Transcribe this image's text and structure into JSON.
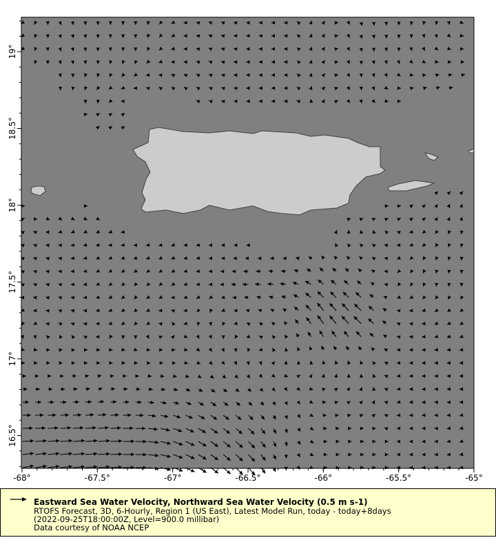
{
  "legend": {
    "title": "Eastward Sea Water Velocity, Northward Sea Water Velocity (0.5 m s-1)",
    "line1": "RTOFS Forecast, 3D, 6-Hourly, Region 1 (US East), Latest Model Run, today - today+8days",
    "line2": "(2022-09-25T18:00:00Z, Level=900.0 millibar)",
    "line3": "Data courtesy of NOAA NCEP",
    "reference_speed": 0.5
  },
  "colors": {
    "ocean": "#808080",
    "land": "#cccccc",
    "coast": "#404040",
    "vectors": "#000000",
    "legend_bg": "#ffffcc"
  },
  "chart_data": {
    "type": "vector",
    "x_ticks": [
      "-68°",
      "-67.5°",
      "-67°",
      "-66.5°",
      "-66°",
      "-65.5°",
      "-65°"
    ],
    "y_ticks": [
      "16.5°",
      "17°",
      "17.5°",
      "18°",
      "18.5°",
      "19°"
    ],
    "xlim": [
      -68,
      -65
    ],
    "ylim": [
      16.29,
      19.22
    ],
    "units": "m s-1",
    "coarse_lon": [
      -68,
      -67.75,
      -67.5,
      -67.25,
      -67,
      -66.75,
      -66.5,
      -66.25,
      -66,
      -65.75,
      -65.5,
      -65.25,
      -65
    ],
    "coarse_lat": [
      19.25,
      19.0,
      18.75,
      18.5,
      18.25,
      18.0,
      17.75,
      17.5,
      17.25,
      17.0,
      16.75,
      16.5,
      16.25
    ],
    "u_v": [
      [
        [
          -0.08,
          -0.04
        ],
        [
          0.04,
          -0.1
        ],
        [
          0,
          -0.1
        ],
        [
          0,
          -0.08
        ],
        [
          -0.06,
          -0.04
        ],
        [
          -0.1,
          0.04
        ],
        [
          -0.1,
          0
        ],
        [
          -0.08,
          0
        ],
        [
          0.06,
          0.08
        ],
        [
          0.04,
          -0.14
        ],
        [
          0,
          -0.12
        ],
        [
          -0.04,
          -0.1
        ],
        [
          0.06,
          0.02
        ]
      ],
      [
        [
          -0.06,
          -0.04
        ],
        [
          0.04,
          -0.1
        ],
        [
          0,
          -0.1
        ],
        [
          0,
          -0.08
        ],
        [
          -0.06,
          -0.02
        ],
        [
          -0.1,
          0.04
        ],
        [
          -0.1,
          0
        ],
        [
          -0.08,
          0
        ],
        [
          0.06,
          0.08
        ],
        [
          0.02,
          -0.12
        ],
        [
          0,
          -0.1
        ],
        [
          0.06,
          -0.04
        ],
        [
          0.12,
          0.02
        ]
      ],
      [
        [
          0,
          -0.06
        ],
        [
          0,
          -0.08
        ],
        [
          -0.04,
          -0.06
        ],
        [
          -0.08,
          0
        ],
        [
          -0.06,
          0.06
        ],
        [
          -0.08,
          0.04
        ],
        [
          -0.1,
          0
        ],
        [
          -0.08,
          0
        ],
        [
          0.06,
          0.06
        ],
        [
          0,
          -0.08
        ],
        [
          0.08,
          0
        ],
        [
          0.16,
          0.06
        ],
        [
          0.2,
          0.04
        ]
      ],
      [
        [
          0.06,
          0
        ],
        [
          0.06,
          0.04
        ],
        [
          0.08,
          0.06
        ],
        [
          0.08,
          0.04
        ],
        [
          -0.06,
          0
        ],
        [
          -0.06,
          -0.02
        ],
        [
          -0.06,
          -0.02
        ],
        [
          -0.06,
          -0.02
        ],
        [
          -0.04,
          0.04
        ],
        [
          0.06,
          0
        ],
        [
          0.08,
          0
        ],
        [
          0.1,
          0
        ],
        [
          0.1,
          0
        ]
      ],
      [
        [
          0.06,
          0
        ],
        [
          0.06,
          0
        ],
        [
          0.06,
          0
        ],
        [
          0.06,
          0
        ],
        [
          0.06,
          0
        ],
        [
          0.06,
          0
        ],
        [
          0.06,
          0
        ],
        [
          0.06,
          0
        ],
        [
          0.08,
          0
        ],
        [
          0.08,
          0
        ],
        [
          0.08,
          0
        ],
        [
          0.08,
          0
        ],
        [
          0.08,
          0
        ]
      ],
      [
        [
          0.06,
          0
        ],
        [
          0.06,
          -0.02
        ],
        [
          0.06,
          0
        ],
        [
          0.06,
          0
        ],
        [
          0.06,
          0
        ],
        [
          0.06,
          0
        ],
        [
          0.06,
          0
        ],
        [
          0.06,
          0
        ],
        [
          0.08,
          -0.02
        ],
        [
          0.08,
          0
        ],
        [
          0.08,
          0.02
        ],
        [
          0.04,
          0.06
        ],
        [
          0,
          0.06
        ]
      ],
      [
        [
          -0.06,
          0.02
        ],
        [
          -0.06,
          0
        ],
        [
          -0.06,
          -0.02
        ],
        [
          -0.06,
          0
        ],
        [
          -0.06,
          -0.02
        ],
        [
          -0.06,
          0
        ],
        [
          -0.06,
          0
        ],
        [
          -0.06,
          -0.04
        ],
        [
          0,
          0.06
        ],
        [
          -0.04,
          0.04
        ],
        [
          -0.06,
          0
        ],
        [
          -0.04,
          -0.06
        ],
        [
          0,
          -0.06
        ]
      ],
      [
        [
          -0.06,
          0.04
        ],
        [
          -0.08,
          0.02
        ],
        [
          -0.08,
          -0.04
        ],
        [
          -0.06,
          -0.06
        ],
        [
          -0.06,
          -0.04
        ],
        [
          -0.08,
          0
        ],
        [
          -0.28,
          0
        ],
        [
          -0.28,
          0.04
        ],
        [
          -0.26,
          0.2
        ],
        [
          -0.18,
          0.16
        ],
        [
          -0.04,
          -0.06
        ],
        [
          0,
          -0.06
        ],
        [
          0,
          -0.06
        ]
      ],
      [
        [
          -0.04,
          -0.06
        ],
        [
          -0.08,
          0.04
        ],
        [
          -0.08,
          0
        ],
        [
          -0.06,
          -0.06
        ],
        [
          -0.04,
          0.04
        ],
        [
          0,
          -0.08
        ],
        [
          -0.06,
          0.04
        ],
        [
          -0.1,
          0.1
        ],
        [
          -0.3,
          0.4
        ],
        [
          -0.36,
          0.36
        ],
        [
          -0.1,
          0.04
        ],
        [
          -0.08,
          -0.04
        ],
        [
          -0.08,
          -0.06
        ]
      ],
      [
        [
          0.08,
          0
        ],
        [
          0.08,
          0
        ],
        [
          0.08,
          0
        ],
        [
          0.08,
          0
        ],
        [
          0.1,
          0
        ],
        [
          0.06,
          -0.06
        ],
        [
          0,
          -0.08
        ],
        [
          0,
          0.08
        ],
        [
          -0.04,
          0.12
        ],
        [
          -0.06,
          0.1
        ],
        [
          -0.08,
          0
        ],
        [
          -0.08,
          0
        ],
        [
          -0.08,
          0
        ]
      ],
      [
        [
          0.24,
          0
        ],
        [
          0.24,
          0
        ],
        [
          0.24,
          0.04
        ],
        [
          0.24,
          0
        ],
        [
          0.24,
          -0.06
        ],
        [
          0.24,
          -0.16
        ],
        [
          0.16,
          -0.12
        ],
        [
          0.06,
          -0.12
        ],
        [
          0.1,
          0
        ],
        [
          0.06,
          0.08
        ],
        [
          -0.08,
          -0.02
        ],
        [
          -0.08,
          0
        ],
        [
          -0.06,
          0
        ]
      ],
      [
        [
          0.5,
          0.02
        ],
        [
          0.54,
          0.04
        ],
        [
          0.54,
          0.04
        ],
        [
          0.5,
          0
        ],
        [
          0.44,
          -0.16
        ],
        [
          0.34,
          -0.24
        ],
        [
          0.3,
          -0.3
        ],
        [
          0.04,
          -0.24
        ],
        [
          0.16,
          0
        ],
        [
          0.12,
          0
        ],
        [
          -0.06,
          0
        ],
        [
          -0.06,
          0
        ],
        [
          -0.06,
          -0.04
        ]
      ],
      [
        [
          0.5,
          0.1
        ],
        [
          0.54,
          0.06
        ],
        [
          0.54,
          0.04
        ],
        [
          0.5,
          0
        ],
        [
          0.44,
          -0.16
        ],
        [
          0.34,
          -0.26
        ],
        [
          0.3,
          -0.34
        ],
        [
          0,
          -0.1
        ],
        [
          0.16,
          0
        ],
        [
          0.12,
          0
        ],
        [
          -0.04,
          0
        ],
        [
          -0.06,
          0
        ],
        [
          -0.06,
          0
        ]
      ]
    ]
  }
}
